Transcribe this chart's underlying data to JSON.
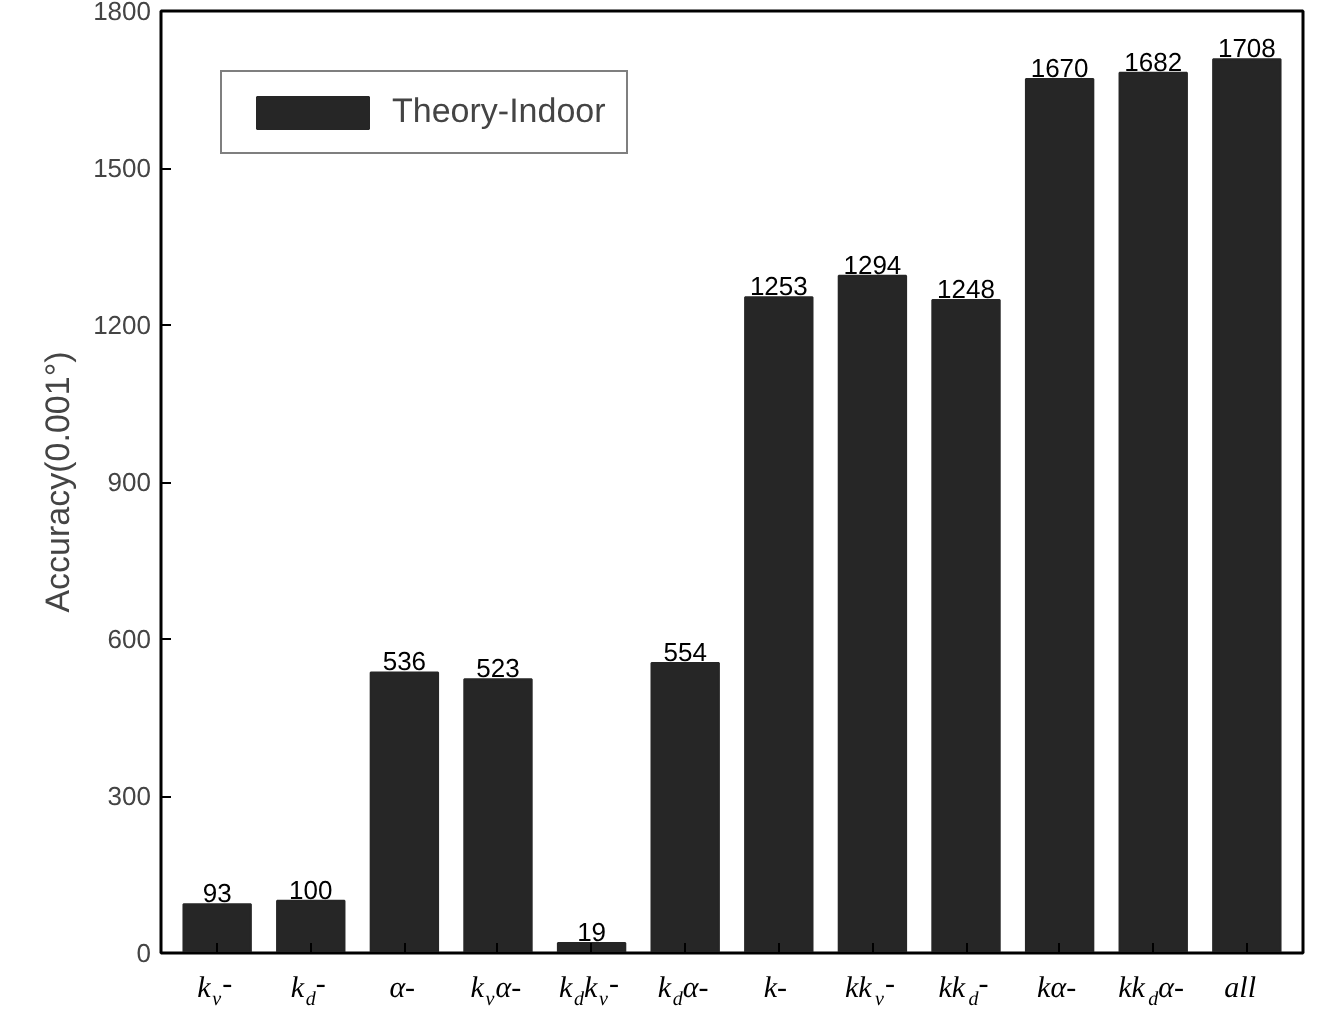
{
  "chart_data": {
    "type": "bar",
    "ylabel": "Accuracy(0.001°)",
    "categories": [
      "k$_{v}$-",
      "k$_{d}$-",
      "α-",
      "k$_{v}$α-",
      "k$_{d}$k$_{v}$-",
      "k$_{d}$α-",
      "k-",
      "kk$_{v}$-",
      "kk$_{d}$-",
      "kα-",
      "kk$_{d}$α-",
      "all"
    ],
    "series": [
      {
        "name": "Theory-Indoor",
        "color": "#262626",
        "values": [
          93,
          100,
          536,
          523,
          19,
          554,
          1253,
          1294,
          1248,
          1670,
          1682,
          1708
        ]
      }
    ],
    "ylim": [
      0,
      1800
    ],
    "yticks": [
      0,
      300,
      600,
      900,
      1200,
      1500,
      1800
    ],
    "data_labels": true,
    "legend": "top left",
    "grid": false
  }
}
